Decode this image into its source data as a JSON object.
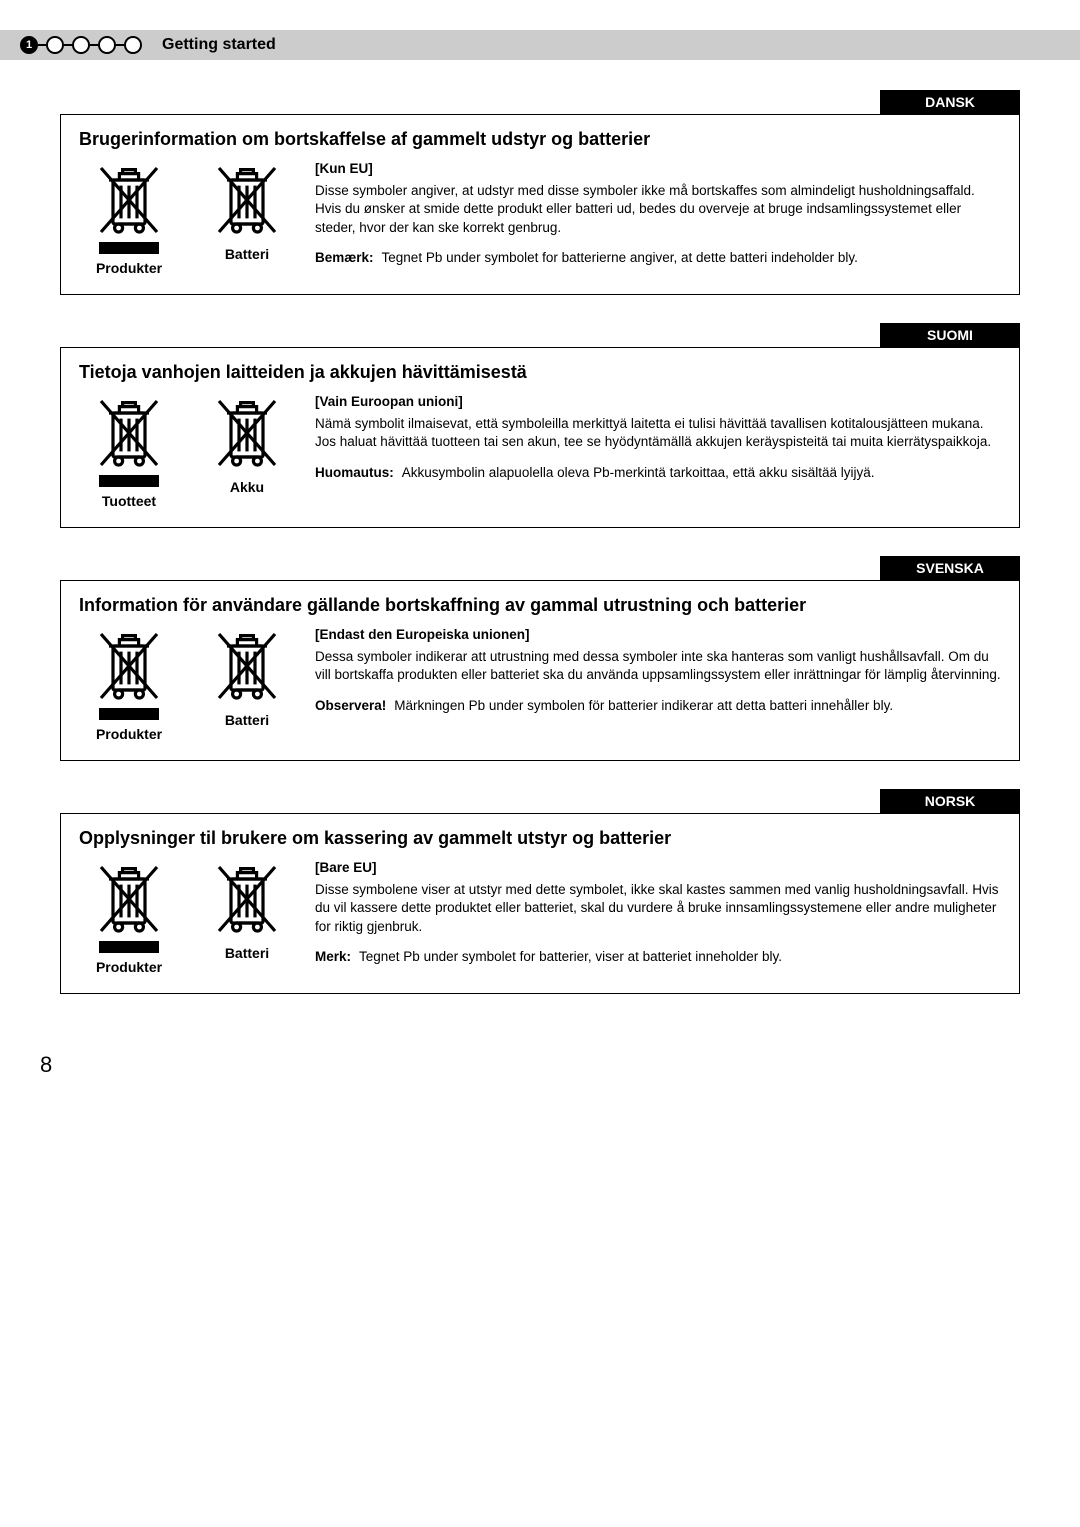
{
  "header": {
    "title": "Getting started",
    "active_step": "1"
  },
  "sections": [
    {
      "lang": "DANSK",
      "title": "Brugerinformation om bortskaffelse af gammelt udstyr og batterier",
      "products_label": "Produkter",
      "battery_label": "Batteri",
      "subhead": "[Kun EU]",
      "paragraph": "Disse symboler angiver, at udstyr med disse symboler ikke må bortskaffes som almindeligt husholdningsaffald. Hvis du ønsker at smide dette produkt eller batteri ud, bedes du overveje at bruge indsamlingssystemet eller steder, hvor der kan ske korrekt genbrug.",
      "note_label": "Bemærk:",
      "note_text": "Tegnet Pb under symbolet for batterierne angiver, at dette batteri indeholder bly."
    },
    {
      "lang": "SUOMI",
      "title": "Tietoja vanhojen laitteiden ja akkujen hävittämisestä",
      "products_label": "Tuotteet",
      "battery_label": "Akku",
      "subhead": "[Vain Euroopan unioni]",
      "paragraph": "Nämä symbolit ilmaisevat, että symboleilla merkittyä laitetta ei tulisi hävittää tavallisen kotitalousjätteen mukana. Jos haluat hävittää tuotteen tai sen akun, tee se hyödyntämällä akkujen keräyspisteitä tai muita kierrätyspaikkoja.",
      "note_label": "Huomautus:",
      "note_text": "Akkusymbolin alapuolella oleva Pb-merkintä tarkoittaa, että akku sisältää lyijyä."
    },
    {
      "lang": "SVENSKA",
      "title": "Information för användare gällande bortskaffning av gammal utrustning och batterier",
      "products_label": "Produkter",
      "battery_label": "Batteri",
      "subhead": "[Endast den Europeiska unionen]",
      "paragraph": "Dessa symboler indikerar att utrustning med dessa symboler inte ska hanteras som vanligt hushållsavfall. Om du vill bortskaffa produkten eller batteriet ska du använda uppsamlingssystem eller inrättningar för lämplig återvinning.",
      "note_label": "Observera!",
      "note_text": "Märkningen Pb under symbolen för batterier indikerar att detta batteri innehåller bly."
    },
    {
      "lang": "NORSK",
      "title": "Opplysninger til brukere om kassering av gammelt utstyr og batterier",
      "products_label": "Produkter",
      "battery_label": "Batteri",
      "subhead": "[Bare EU]",
      "paragraph": "Disse symbolene viser at utstyr med dette symbolet, ikke skal kastes sammen med vanlig husholdningsavfall. Hvis du vil kassere dette produktet eller batteriet, skal du vurdere å bruke innsamlingssystemene eller andre muligheter for riktig gjenbruk.",
      "note_label": "Merk:",
      "note_text": "Tegnet Pb under symbolet for batterier, viser at batteriet inneholder bly."
    }
  ],
  "page_number": "8"
}
